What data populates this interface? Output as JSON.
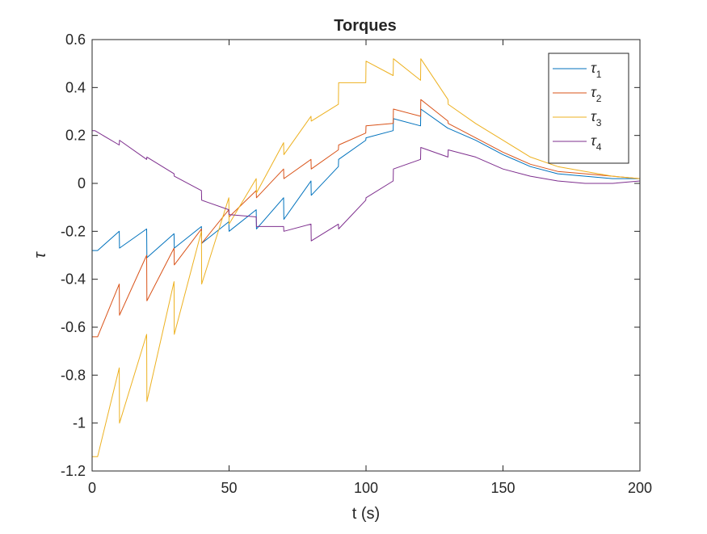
{
  "chart_data": {
    "type": "line",
    "title": "Torques",
    "xlabel": "t (s)",
    "ylabel": "τ",
    "xlim": [
      0,
      200
    ],
    "ylim": [
      -1.2,
      0.6
    ],
    "xticks": [
      0,
      50,
      100,
      150,
      200
    ],
    "xtick_labels": [
      "0",
      "50",
      "100",
      "150",
      "200"
    ],
    "yticks": [
      -1.2,
      -1,
      -0.8,
      -0.6,
      -0.4,
      -0.2,
      0,
      0.2,
      0.4,
      0.6
    ],
    "ytick_labels": [
      "-1.2",
      "-1",
      "-0.8",
      "-0.6",
      "-0.4",
      "-0.2",
      "0",
      "0.2",
      "0.4",
      "0.6"
    ],
    "grid": false,
    "legend_position": "top-right",
    "series": [
      {
        "name": "τ1",
        "base": "τ",
        "sub": "1",
        "color": "#0072BD",
        "x": [
          0,
          2,
          9.9,
          10,
          19.9,
          20,
          29.9,
          30,
          39.9,
          40,
          49.9,
          50,
          59.9,
          60,
          69.9,
          70,
          79.9,
          80,
          89.9,
          90,
          99.9,
          100,
          109.9,
          110,
          119.9,
          120,
          129.9,
          130,
          140,
          150,
          160,
          170,
          180,
          190,
          200
        ],
        "y": [
          -0.28,
          -0.28,
          -0.2,
          -0.27,
          -0.19,
          -0.31,
          -0.21,
          -0.27,
          -0.18,
          -0.25,
          -0.16,
          -0.2,
          -0.11,
          -0.19,
          -0.06,
          -0.15,
          0.01,
          -0.05,
          0.07,
          0.1,
          0.18,
          0.19,
          0.22,
          0.27,
          0.24,
          0.31,
          0.23,
          0.23,
          0.18,
          0.12,
          0.07,
          0.04,
          0.03,
          0.02,
          0.02
        ]
      },
      {
        "name": "τ2",
        "base": "τ",
        "sub": "2",
        "color": "#D95319",
        "x": [
          0,
          2,
          9.9,
          10,
          19.9,
          20,
          29.9,
          30,
          39.9,
          40,
          49.9,
          50,
          59.9,
          60,
          69.9,
          70,
          79.9,
          80,
          89.9,
          90,
          99.9,
          100,
          109.9,
          110,
          119.9,
          120,
          129.9,
          130,
          140,
          150,
          160,
          170,
          180,
          190,
          200
        ],
        "y": [
          -0.64,
          -0.64,
          -0.42,
          -0.55,
          -0.3,
          -0.49,
          -0.27,
          -0.34,
          -0.19,
          -0.25,
          -0.11,
          -0.14,
          -0.03,
          -0.06,
          0.06,
          0.02,
          0.1,
          0.06,
          0.14,
          0.16,
          0.21,
          0.24,
          0.25,
          0.31,
          0.28,
          0.35,
          0.26,
          0.25,
          0.19,
          0.13,
          0.08,
          0.05,
          0.04,
          0.03,
          0.02
        ]
      },
      {
        "name": "τ3",
        "base": "τ",
        "sub": "3",
        "color": "#EDB120",
        "x": [
          0,
          2,
          9.9,
          10,
          19.9,
          20,
          29.9,
          30,
          39.9,
          40,
          49.9,
          50,
          59.9,
          60,
          69.9,
          70,
          79.9,
          80,
          89.9,
          90,
          99.9,
          100,
          109.9,
          110,
          119.9,
          120,
          129.9,
          130,
          140,
          150,
          160,
          170,
          180,
          190,
          200
        ],
        "y": [
          -1.14,
          -1.14,
          -0.77,
          -1.0,
          -0.63,
          -0.91,
          -0.41,
          -0.63,
          -0.2,
          -0.42,
          -0.06,
          -0.17,
          0.02,
          -0.04,
          0.17,
          0.12,
          0.28,
          0.26,
          0.33,
          0.42,
          0.42,
          0.51,
          0.45,
          0.52,
          0.43,
          0.52,
          0.35,
          0.33,
          0.25,
          0.18,
          0.11,
          0.07,
          0.05,
          0.03,
          0.02
        ]
      },
      {
        "name": "τ4",
        "base": "τ",
        "sub": "4",
        "color": "#7E2F8E",
        "x": [
          0,
          1,
          9.9,
          10,
          19.9,
          20,
          29.9,
          30,
          39.9,
          40,
          49.9,
          50,
          59.9,
          60,
          69.9,
          70,
          79.9,
          80,
          89.9,
          90,
          99.9,
          100,
          109.9,
          110,
          119.9,
          120,
          129.9,
          130,
          140,
          150,
          160,
          170,
          180,
          190,
          200
        ],
        "y": [
          0.22,
          0.22,
          0.16,
          0.18,
          0.1,
          0.11,
          0.04,
          0.03,
          -0.03,
          -0.07,
          -0.11,
          -0.13,
          -0.14,
          -0.18,
          -0.18,
          -0.2,
          -0.17,
          -0.24,
          -0.17,
          -0.19,
          -0.07,
          -0.06,
          0.01,
          0.06,
          0.1,
          0.15,
          0.11,
          0.14,
          0.11,
          0.06,
          0.03,
          0.01,
          0.0,
          0.0,
          0.01
        ]
      }
    ]
  }
}
